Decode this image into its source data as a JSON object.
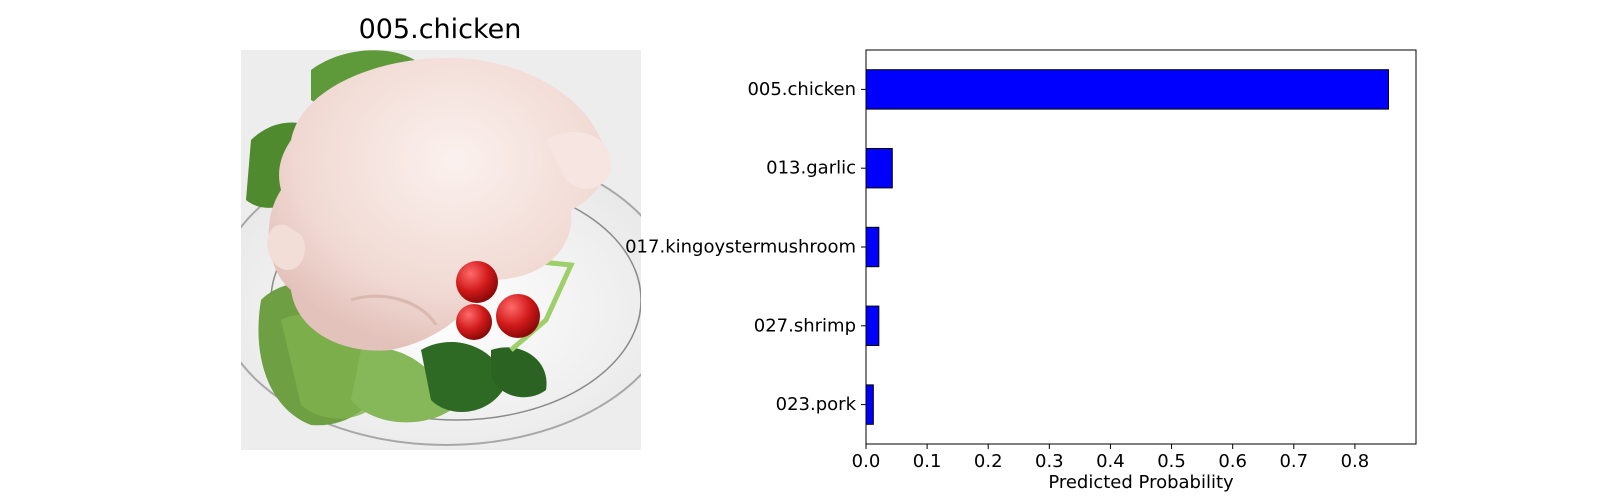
{
  "image_panel": {
    "title": "005.chicken",
    "subject": "whole raw chicken on a plate with lettuce, tomatoes and spinach"
  },
  "chart_data": {
    "type": "bar",
    "orientation": "horizontal",
    "title": "",
    "xlabel": "Predicted Probability",
    "ylabel": "",
    "categories": [
      "005.chicken",
      "013.garlic",
      "017.kingoystermushroom",
      "027.shrimp",
      "023.pork"
    ],
    "values": [
      0.855,
      0.043,
      0.021,
      0.021,
      0.012
    ],
    "xlim": [
      0,
      0.9
    ],
    "xticks": [
      "0.0",
      "0.1",
      "0.2",
      "0.3",
      "0.4",
      "0.5",
      "0.6",
      "0.7",
      "0.8"
    ],
    "bar_color": "#0000ff",
    "bar_edge_color": "#000000",
    "grid": false,
    "legend": "none"
  }
}
